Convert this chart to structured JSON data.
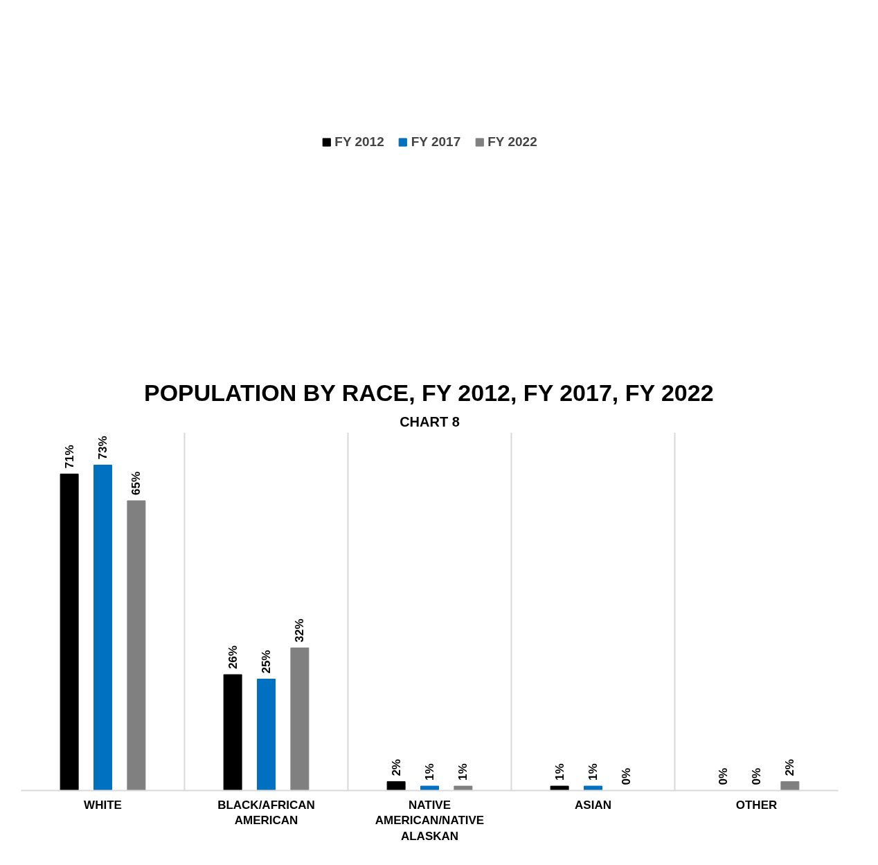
{
  "chart_data": {
    "type": "bar",
    "title": "POPULATION BY RACE, FY 2012, FY 2017, FY 2022",
    "subtitle": "CHART 8",
    "categories": [
      "WHITE",
      "BLACK/AFRICAN AMERICAN",
      "NATIVE AMERICAN/NATIVE ALASKAN",
      "ASIAN",
      "OTHER"
    ],
    "series": [
      {
        "name": "FY 2012",
        "color": "#000000",
        "values": [
          71,
          26,
          2,
          1,
          0
        ],
        "value_labels": [
          "71%",
          "26%",
          "2%",
          "1%",
          "0%"
        ]
      },
      {
        "name": "FY 2017",
        "color": "#0070c0",
        "values": [
          73,
          25,
          1,
          1,
          0
        ],
        "value_labels": [
          "73%",
          "25%",
          "1%",
          "1%",
          "0%"
        ]
      },
      {
        "name": "FY 2022",
        "color": "#808080",
        "values": [
          65,
          32,
          1,
          0,
          2
        ],
        "value_labels": [
          "65%",
          "32%",
          "1%",
          "0%",
          "2%"
        ]
      }
    ],
    "grid": "x",
    "legend": "top",
    "tick_labels": "x"
  }
}
